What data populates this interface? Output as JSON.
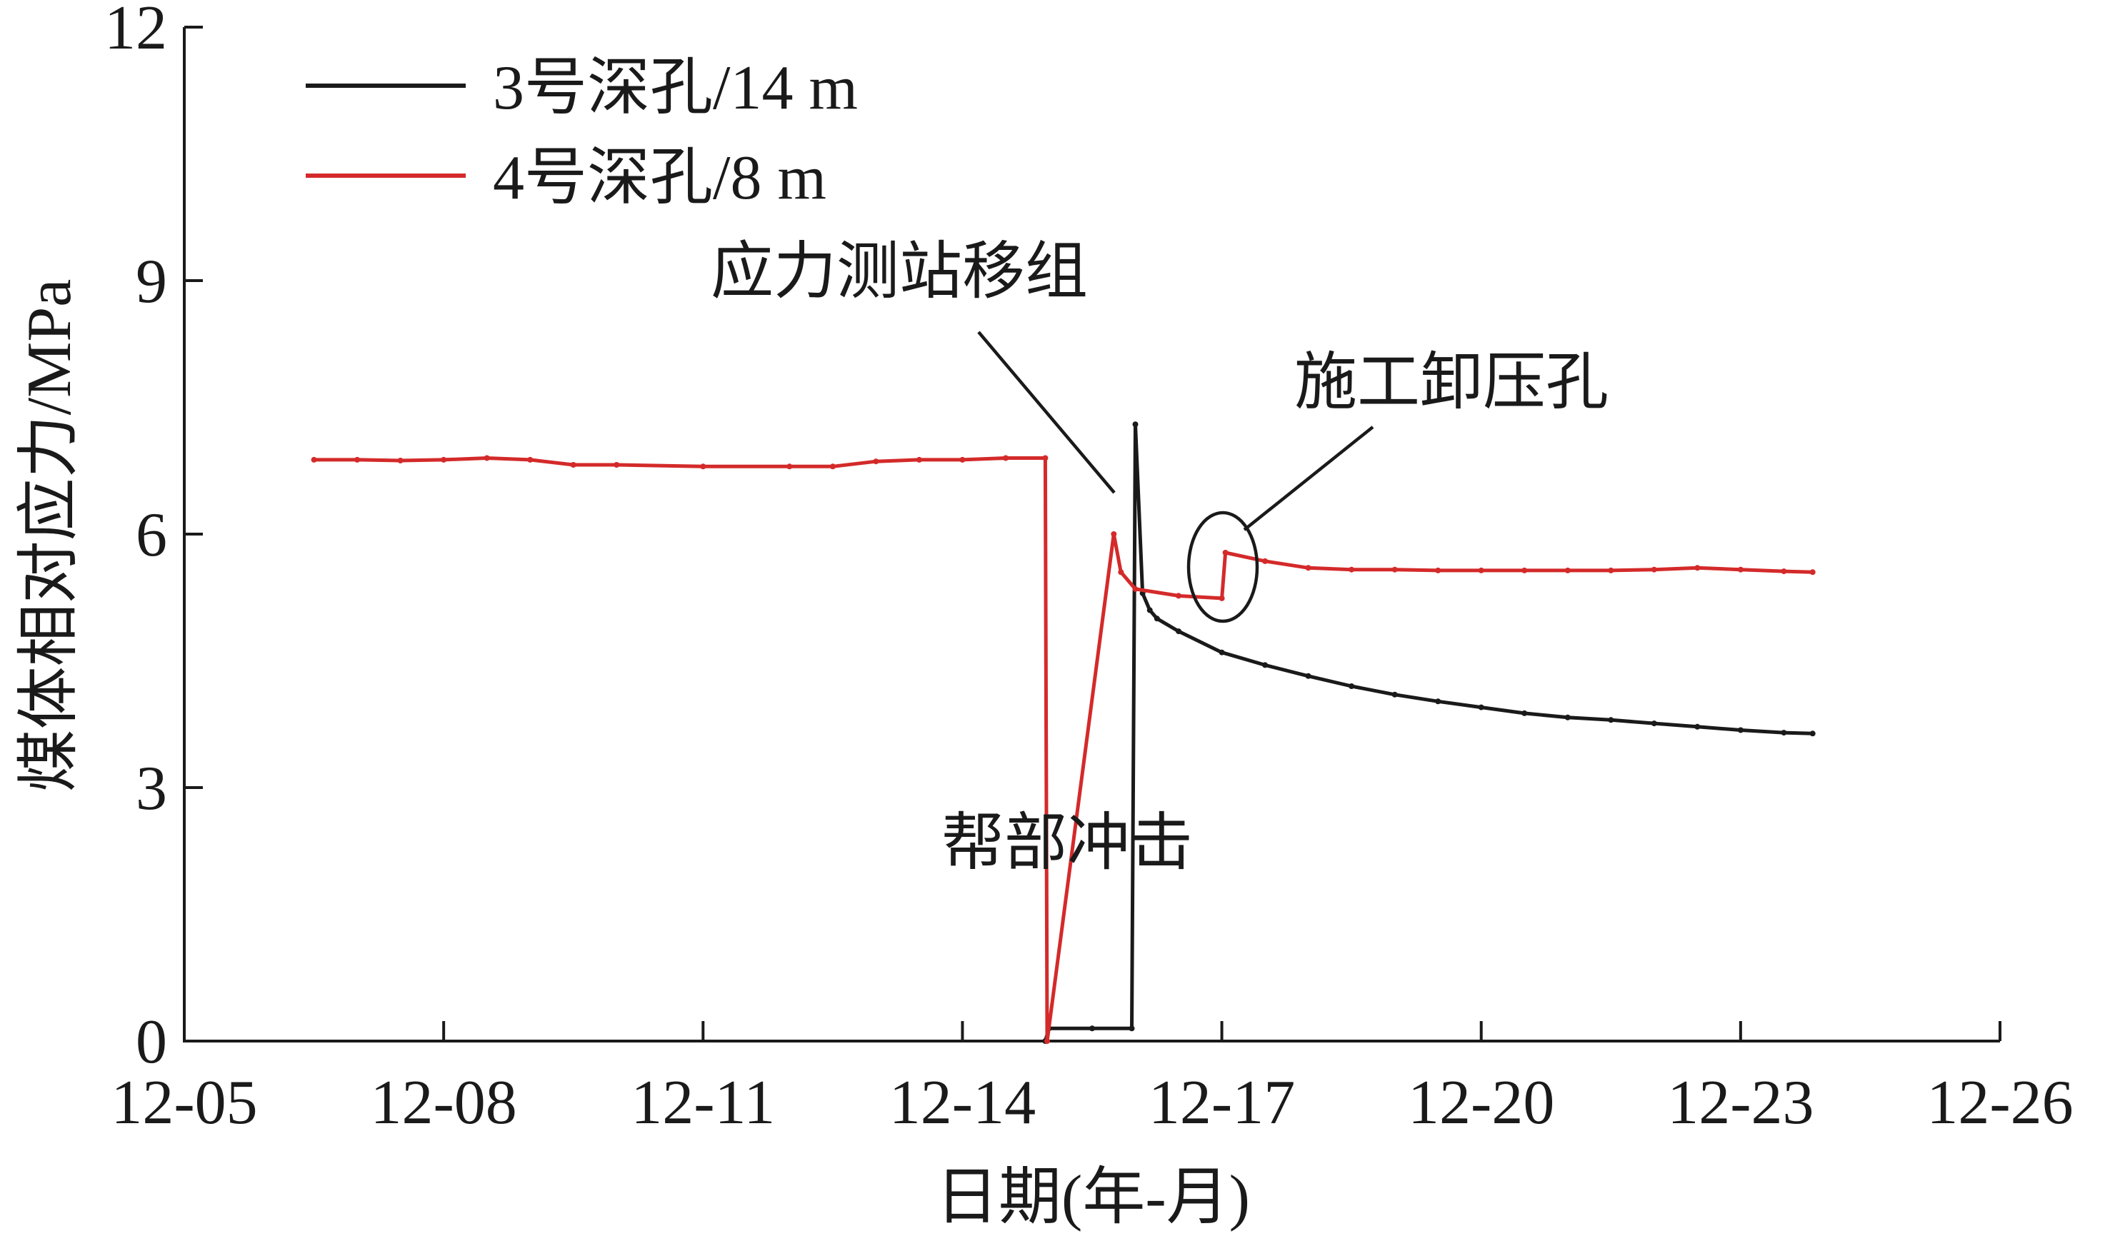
{
  "chart_data": {
    "type": "line",
    "xlabel": "日期(年-月)",
    "ylabel": "煤体相对应力/MPa",
    "x_ticks": [
      "12-05",
      "12-08",
      "12-11",
      "12-14",
      "12-17",
      "12-20",
      "12-23",
      "12-26"
    ],
    "xlim": [
      "12-05",
      "12-26"
    ],
    "ylim": [
      0,
      12
    ],
    "y_ticks": [
      0,
      3,
      6,
      9,
      12
    ],
    "grid": false,
    "legend_position": "top-left",
    "colors": {
      "series_1": "#1a1a1a",
      "series_2": "#d42a2a"
    },
    "series": [
      {
        "name": "3号深孔/14 m",
        "x": [
          "12-14 23:00",
          "12-15 00:00",
          "12-15 12:00",
          "12-15 23:00",
          "12-16 00:00",
          "12-16 02:00",
          "12-16 04:00",
          "12-16 06:00",
          "12-16 12:00",
          "12-17 00:00",
          "12-17 12:00",
          "12-18 00:00",
          "12-18 12:00",
          "12-19 00:00",
          "12-19 12:00",
          "12-20 00:00",
          "12-20 12:00",
          "12-21 00:00",
          "12-21 12:00",
          "12-22 00:00",
          "12-22 12:00",
          "12-23 00:00",
          "12-23 12:00",
          "12-23 20:00"
        ],
        "y": [
          0.0,
          0.15,
          0.15,
          0.15,
          7.3,
          5.3,
          5.1,
          5.0,
          4.85,
          4.6,
          4.45,
          4.32,
          4.2,
          4.1,
          4.02,
          3.95,
          3.88,
          3.83,
          3.8,
          3.76,
          3.72,
          3.68,
          3.65,
          3.64
        ]
      },
      {
        "name": "4号深孔/8 m",
        "x": [
          "12-06 12:00",
          "12-07 00:00",
          "12-07 12:00",
          "12-08 00:00",
          "12-08 12:00",
          "12-09 00:00",
          "12-09 12:00",
          "12-10 00:00",
          "12-11 00:00",
          "12-12 00:00",
          "12-12 12:00",
          "12-13 00:00",
          "12-13 12:00",
          "12-14 00:00",
          "12-14 12:00",
          "12-14 23:00",
          "12-14 23:30",
          "12-15 18:00",
          "12-15 20:00",
          "12-16 00:00",
          "12-16 12:00",
          "12-17 00:00",
          "12-17 01:00",
          "12-17 12:00",
          "12-18 00:00",
          "12-18 12:00",
          "12-19 00:00",
          "12-19 12:00",
          "12-20 00:00",
          "12-20 12:00",
          "12-21 00:00",
          "12-21 12:00",
          "12-22 00:00",
          "12-22 12:00",
          "12-23 00:00",
          "12-23 12:00",
          "12-23 20:00"
        ],
        "y": [
          6.88,
          6.88,
          6.87,
          6.88,
          6.9,
          6.88,
          6.82,
          6.82,
          6.8,
          6.8,
          6.8,
          6.86,
          6.88,
          6.88,
          6.9,
          6.9,
          0.0,
          6.0,
          5.55,
          5.35,
          5.27,
          5.24,
          5.78,
          5.68,
          5.6,
          5.58,
          5.58,
          5.57,
          5.57,
          5.57,
          5.57,
          5.57,
          5.58,
          5.6,
          5.58,
          5.56,
          5.55
        ]
      }
    ],
    "annotations": [
      {
        "id": "station-move",
        "text": "应力测站移组",
        "points_to": "12-15 22:00"
      },
      {
        "id": "pressure-relief",
        "text": "施工卸压孔",
        "points_to": "12-17 00:00"
      },
      {
        "id": "rib-burst",
        "text": "帮部冲击",
        "points_to": "12-16 00:00"
      }
    ]
  }
}
